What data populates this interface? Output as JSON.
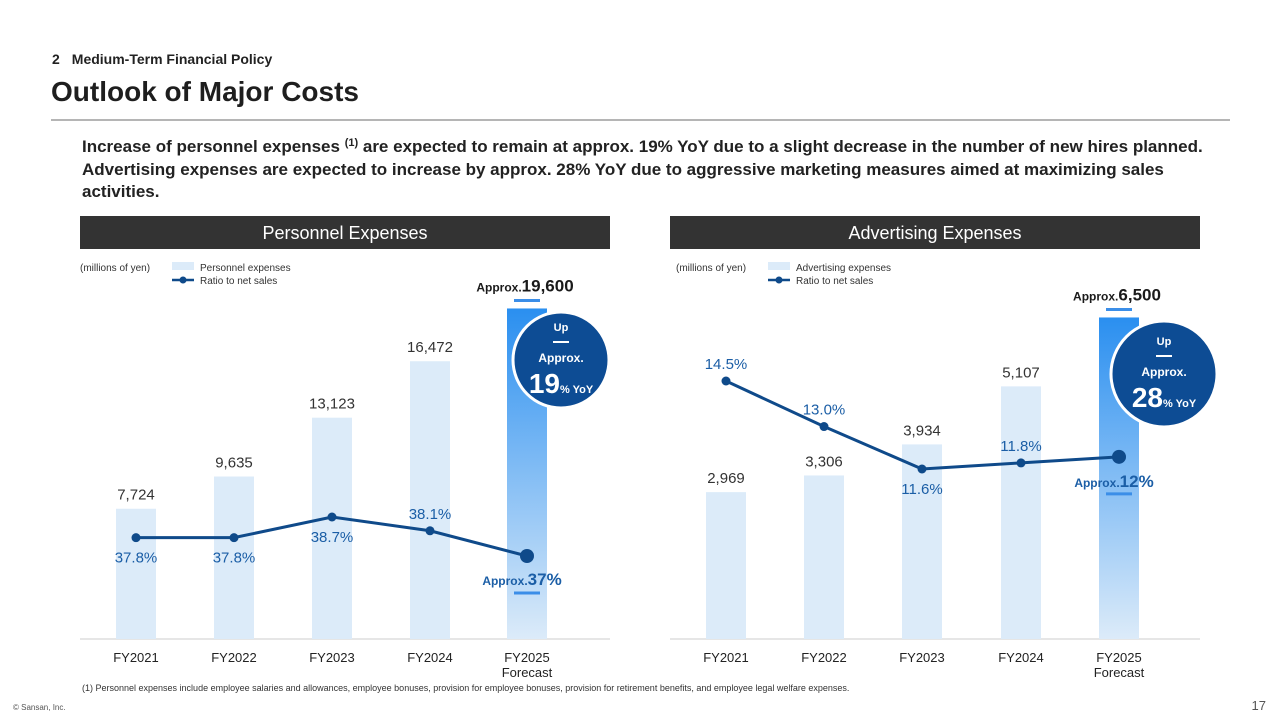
{
  "header": {
    "section_number": "2",
    "section_title": "Medium-Term Financial Policy",
    "page_title": "Outlook of Major Costs"
  },
  "lead": {
    "part1": "Increase of personnel expenses",
    "sup": "(1)",
    "part2": " are expected to remain at approx. 19% YoY due to a slight decrease in the number of new hires planned. Advertising expenses are expected to increase by approx. 28% YoY due to aggressive marketing measures aimed at maximizing sales activities."
  },
  "footnote": "(1)  Personnel expenses include employee salaries and allowances, employee bonuses, provision for employee bonuses, provision for retirement benefits, and employee legal welfare expenses.",
  "copyright": "© Sansan,  Inc.",
  "page_number": "17",
  "colors": {
    "bar": "#dcebf9",
    "forecast_bar_top": "#2a8ff0",
    "forecast_bar_bottom": "#dcebf9",
    "line": "#0f4a8a",
    "ratio_text": "#1b5ea6",
    "badge": "#0d4c94",
    "panel_header": "#333333",
    "accent": "#3b8ee8"
  },
  "chart_data": [
    {
      "type": "bar",
      "title": "Personnel Expenses",
      "unit_note": "(millions of yen)",
      "categories": [
        "FY2021",
        "FY2022",
        "FY2023",
        "FY2024",
        "FY2025"
      ],
      "category_sublabels": [
        "",
        "",
        "",
        "",
        "Forecast"
      ],
      "ylim": [
        0,
        22000
      ],
      "series": [
        {
          "name": "Personnel expenses",
          "type": "bar",
          "values": [
            7724,
            9635,
            13123,
            16472,
            19600
          ],
          "labels": [
            "7,724",
            "9,635",
            "13,123",
            "16,472",
            "19,600"
          ]
        },
        {
          "name": "Ratio to net sales",
          "type": "line",
          "values": [
            37.8,
            37.8,
            38.7,
            38.1,
            37
          ],
          "labels": [
            "37.8%",
            "37.8%",
            "38.7%",
            "38.1%",
            "37%"
          ]
        }
      ],
      "forecast_bar_prefix": "Approx.",
      "forecast_ratio_prefix": "Approx.",
      "badge": {
        "line1": "Up",
        "line2": "Approx.",
        "value": "19",
        "suffix": "% YoY"
      }
    },
    {
      "type": "bar",
      "title": "Advertising Expenses",
      "unit_note": "(millions of yen)",
      "categories": [
        "FY2021",
        "FY2022",
        "FY2023",
        "FY2024",
        "FY2025"
      ],
      "category_sublabels": [
        "",
        "",
        "",
        "",
        "Forecast"
      ],
      "ylim": [
        0,
        7500
      ],
      "series": [
        {
          "name": "Advertising expenses",
          "type": "bar",
          "values": [
            2969,
            3306,
            3934,
            5107,
            6500
          ],
          "labels": [
            "2,969",
            "3,306",
            "3,934",
            "5,107",
            "6,500"
          ]
        },
        {
          "name": "Ratio to net sales",
          "type": "line",
          "values": [
            14.5,
            13.0,
            11.6,
            11.8,
            12
          ],
          "labels": [
            "14.5%",
            "13.0%",
            "11.6%",
            "11.8%",
            "12%"
          ]
        }
      ],
      "forecast_bar_prefix": "Approx.",
      "forecast_ratio_prefix": "Approx.",
      "badge": {
        "line1": "Up",
        "line2": "Approx.",
        "value": "28",
        "suffix": "% YoY"
      }
    }
  ]
}
